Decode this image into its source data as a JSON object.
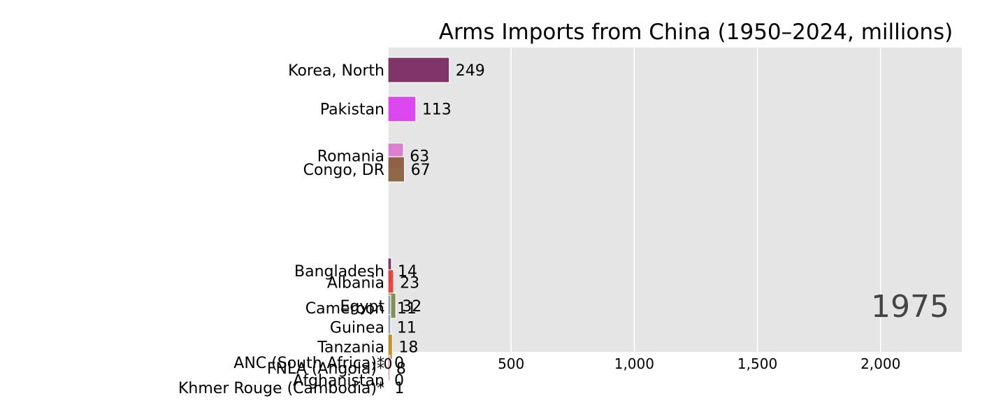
{
  "chart_data": {
    "type": "bar",
    "orientation": "horizontal",
    "title": "Arms Imports from China (1950–2024, millions)",
    "year": "1975",
    "xlabel": "",
    "ylabel": "",
    "xlim": [
      0,
      2330
    ],
    "xticks": [
      0,
      500,
      1000,
      1500,
      2000
    ],
    "xtick_labels": [
      "0",
      "500",
      "1,000",
      "1,500",
      "2,000"
    ],
    "grid": true,
    "legend": "none",
    "rank_span": [
      1,
      17
    ],
    "bars": [
      {
        "label": "Korea, North",
        "value": 249,
        "rank": 1.0,
        "color": "#7b2a60"
      },
      {
        "label": "Pakistan",
        "value": 113,
        "rank": 2.0,
        "color": "#dc3ef0"
      },
      {
        "label": "Romania",
        "value": 63,
        "rank": 3.2,
        "color": "#dc7ad0"
      },
      {
        "label": "Congo, DR",
        "value": 67,
        "rank": 3.55,
        "color": "#8a6040"
      },
      {
        "label": "Bangladesh",
        "value": 14,
        "rank": 6.15,
        "color": "#7b2a60"
      },
      {
        "label": "Albania",
        "value": 23,
        "rank": 6.45,
        "color": "#e8403a"
      },
      {
        "label": "Egypt",
        "value": 32,
        "rank": 7.05,
        "color": "#7f8a50"
      },
      {
        "label": "Cameroon",
        "value": 11,
        "rank": 7.1,
        "color": "#8ea3b8"
      },
      {
        "label": "Guinea",
        "value": 11,
        "rank": 7.6,
        "color": "#8ea3b8"
      },
      {
        "label": "Tanzania",
        "value": 18,
        "rank": 8.1,
        "color": "#c08a20"
      },
      {
        "label": "ANC (South Africa)*",
        "value": 0,
        "rank": 8.5,
        "color": "#888888"
      },
      {
        "label": "FNLA (Angola)*",
        "value": 8,
        "rank": 8.65,
        "color": "#e08aa0"
      },
      {
        "label": "Afghanistan",
        "value": 0,
        "rank": 8.95,
        "color": "#888888"
      },
      {
        "label": "Khmer Rouge (Cambodia)*",
        "value": 1,
        "rank": 9.15,
        "color": "#e08aa0"
      }
    ]
  }
}
